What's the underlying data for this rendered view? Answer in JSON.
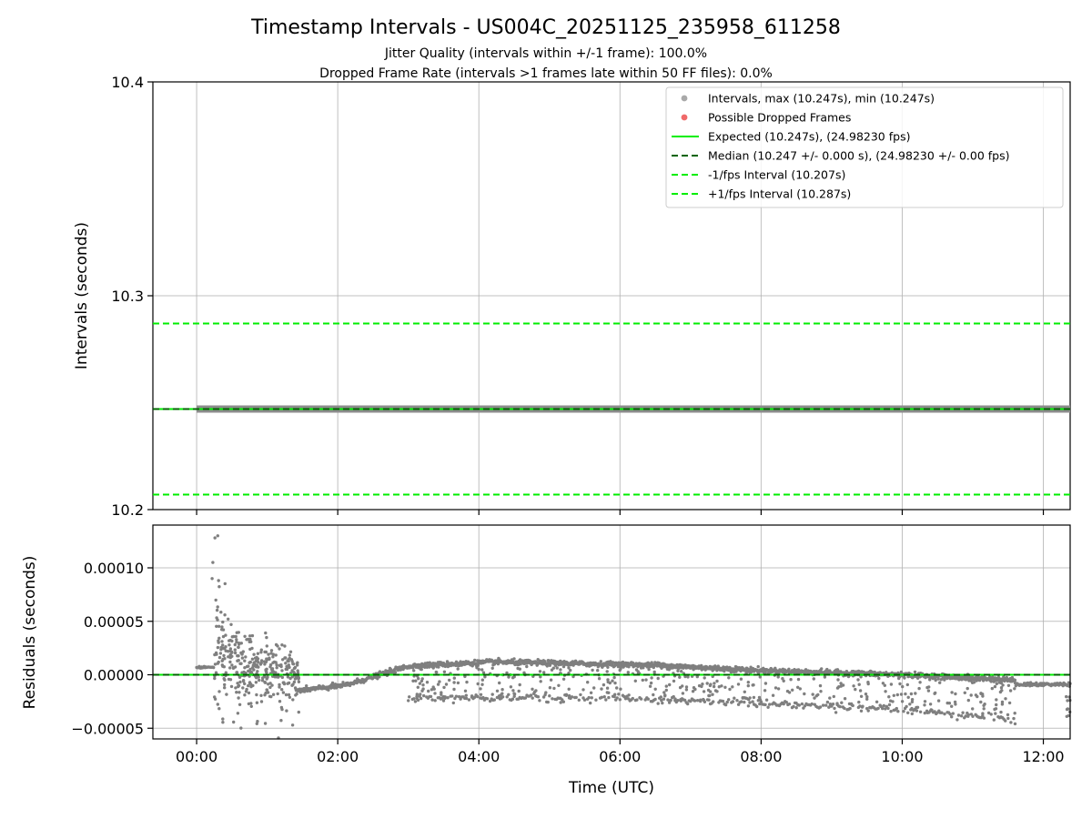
{
  "chart_data": {
    "type": "scatter",
    "title": "Timestamp Intervals - US004C_20251125_235958_611258",
    "subtitle_line1": "Jitter Quality (intervals within +/-1 frame): 100.0%",
    "subtitle_line2": "Dropped Frame Rate (intervals >1 frames late within 50 FF files): 0.0%",
    "top_panel": {
      "ylabel": "Intervals (seconds)",
      "ylim": [
        10.2,
        10.4
      ],
      "yticks": [
        "10.2",
        "10.3",
        "10.4"
      ],
      "yticks_values": [
        10.2,
        10.3,
        10.4
      ],
      "interval_value": 10.247,
      "expected": 10.247,
      "median": 10.247,
      "minus_fps": 10.207,
      "plus_fps": 10.287,
      "grid": true,
      "legend_position": "top-right",
      "legend": [
        {
          "label": "Intervals, max (10.247s), min (10.247s)",
          "kind": "marker",
          "color": "#a9a9a9"
        },
        {
          "label": "Possible Dropped Frames",
          "kind": "marker",
          "color": "#f06a6a"
        },
        {
          "label": "Expected (10.247s), (24.98230 fps)",
          "kind": "solid",
          "color": "#00ee00"
        },
        {
          "label": "Median (10.247 +/- 0.000 s), (24.98230 +/- 0.00 fps)",
          "kind": "dashed",
          "color": "#006400"
        },
        {
          "label": "-1/fps Interval (10.207s)",
          "kind": "dashed",
          "color": "#00ee00"
        },
        {
          "label": "+1/fps Interval (10.287s)",
          "kind": "dashed",
          "color": "#00ee00"
        }
      ]
    },
    "bottom_panel": {
      "ylabel": "Residuals (seconds)",
      "xlabel": "Time (UTC)",
      "ylim": [
        -6e-05,
        0.00014
      ],
      "yticks": [
        "−0.00005",
        "0.00000",
        "0.00005",
        "0.00010"
      ],
      "yticks_values": [
        -5e-05,
        0,
        5e-05,
        0.0001
      ],
      "zero_line": 0,
      "grid": true
    },
    "x_axis": {
      "unit": "hours",
      "xlim": [
        -0.62,
        12.38
      ],
      "data_range": [
        0.0,
        12.4
      ],
      "ticks": [
        "00:00",
        "02:00",
        "04:00",
        "06:00",
        "08:00",
        "10:00",
        "12:00"
      ],
      "ticks_values": [
        0,
        2,
        4,
        6,
        8,
        10,
        12
      ]
    },
    "residual_series": {
      "point_count": 2800,
      "point_color": "#7f7f7f",
      "description_points": [
        {
          "x": 0.0,
          "y": 7e-06
        },
        {
          "x": 0.2,
          "y": 7e-06
        },
        {
          "x": 0.3,
          "y": 0.00013
        },
        {
          "x": 0.5,
          "y": 3.5e-05
        },
        {
          "x": 1.0,
          "y": 5e-06
        },
        {
          "x": 1.4,
          "y": -1.5e-05
        },
        {
          "x": 2.0,
          "y": -1.2e-05
        },
        {
          "x": 2.5,
          "y": 0.0
        },
        {
          "x": 3.0,
          "y": 8e-06
        },
        {
          "x": 4.0,
          "y": 1.2e-05
        },
        {
          "x": 6.0,
          "y": 1e-05
        },
        {
          "x": 8.0,
          "y": 4e-06
        },
        {
          "x": 10.0,
          "y": 0.0
        },
        {
          "x": 11.5,
          "y": -5e-06
        },
        {
          "x": 12.4,
          "y": -9e-06
        }
      ]
    }
  }
}
